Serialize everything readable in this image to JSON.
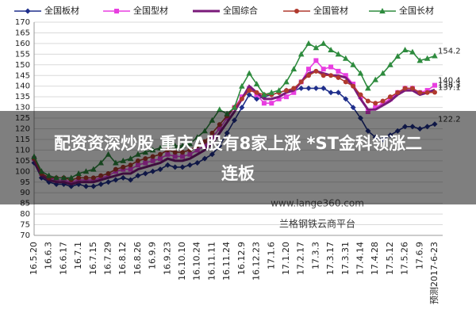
{
  "chart_data": {
    "type": "line",
    "categories": [
      "16.5.20",
      null,
      "16.6.3",
      null,
      "16.6.17",
      null,
      "16.7.1",
      null,
      "16.7.15",
      null,
      "16.7.29",
      null,
      "16.8.12",
      null,
      "16.8.26",
      null,
      "16.9.9",
      null,
      "16.9.23",
      null,
      "16.10.10",
      null,
      "16.10.24",
      null,
      "16.11.11",
      null,
      "16.11.24",
      null,
      "16.12.9",
      null,
      "16.12.23",
      null,
      "17.1.6",
      null,
      "17.1.20",
      null,
      "17.2.17",
      null,
      "17.3.3",
      null,
      "17.3.17",
      null,
      "17.3.31",
      null,
      "17.4.14",
      null,
      "17.4.28",
      null,
      "17.5.12",
      null,
      "17.5.26",
      null,
      "17.6.9",
      null,
      "预测2017-6-23"
    ],
    "series": [
      {
        "name": "全国板材",
        "color": "#1f2f8c",
        "marker": "diamond",
        "values": [
          104,
          97,
          95,
          94,
          94,
          93,
          94,
          93,
          93,
          94,
          95,
          96,
          97,
          96,
          98,
          99,
          100,
          101,
          103,
          102,
          102,
          103,
          104,
          106,
          108,
          112,
          118,
          124,
          130,
          136,
          134,
          135,
          136,
          137,
          138,
          138,
          139,
          139,
          139,
          139,
          137,
          137,
          134,
          130,
          125,
          119,
          116,
          115,
          117,
          119,
          121,
          121,
          120,
          121,
          122.2
        ]
      },
      {
        "name": "全国型材",
        "color": "#e83ee0",
        "marker": "square",
        "values": [
          106,
          99,
          97,
          96,
          96,
          95,
          96,
          96,
          96,
          97,
          98,
          100,
          101,
          101,
          103,
          104,
          105,
          106,
          108,
          107,
          107,
          108,
          110,
          112,
          116,
          120,
          125,
          130,
          135,
          139,
          136,
          132,
          132,
          134,
          135,
          137,
          142,
          148,
          152,
          148,
          149,
          147,
          145,
          141,
          135,
          128,
          130,
          132,
          134,
          137,
          139,
          139,
          137,
          138,
          140.4
        ]
      },
      {
        "name": "全国综合",
        "color": "#7a1a7a",
        "marker": "none",
        "values": [
          105,
          98,
          96,
          95,
          95,
          94,
          95,
          95,
          95,
          96,
          97,
          98,
          99,
          99,
          101,
          102,
          103,
          104,
          106,
          105,
          105,
          106,
          108,
          110,
          113,
          118,
          123,
          128,
          134,
          140,
          137,
          134,
          134,
          135,
          137,
          138,
          142,
          146,
          147,
          146,
          145,
          145,
          144,
          140,
          134,
          129,
          129,
          131,
          133,
          136,
          138,
          138,
          136,
          137,
          138.3
        ]
      },
      {
        "name": "全国管材",
        "color": "#b03a2e",
        "marker": "circle",
        "values": [
          106,
          99,
          97,
          97,
          97,
          96,
          97,
          97,
          97,
          98,
          99,
          101,
          102,
          103,
          105,
          106,
          107,
          108,
          110,
          109,
          109,
          110,
          112,
          114,
          118,
          122,
          126,
          130,
          134,
          138,
          137,
          136,
          136,
          137,
          138,
          139,
          142,
          145,
          147,
          145,
          145,
          144,
          142,
          140,
          136,
          133,
          132,
          133,
          135,
          137,
          139,
          139,
          137,
          137,
          137.1
        ]
      },
      {
        "name": "全国长材",
        "color": "#2e8b3e",
        "marker": "triangle",
        "values": [
          107,
          100,
          98,
          97,
          97,
          97,
          99,
          100,
          101,
          104,
          108,
          104,
          105,
          106,
          108,
          109,
          110,
          111,
          113,
          112,
          112,
          113,
          116,
          119,
          124,
          129,
          127,
          130,
          140,
          146,
          141,
          136,
          137,
          138,
          142,
          148,
          155,
          160,
          158,
          160,
          157,
          155,
          153,
          150,
          146,
          139,
          143,
          146,
          150,
          154,
          157,
          156,
          152,
          153,
          154.2
        ]
      }
    ],
    "ylim": [
      70,
      170
    ],
    "yticks": [
      70,
      75,
      80,
      85,
      90,
      95,
      100,
      105,
      110,
      115,
      120,
      125,
      130,
      135,
      140,
      145,
      150,
      155,
      160,
      165,
      170
    ],
    "grid": true,
    "end_labels": true,
    "legend": "top",
    "annotations": [
      "www.lange360.com",
      "兰格钢铁云商平台"
    ],
    "headline": [
      "配资资深炒股 重庆A股有8家上涨 *ST金科领涨二",
      "连板"
    ]
  }
}
